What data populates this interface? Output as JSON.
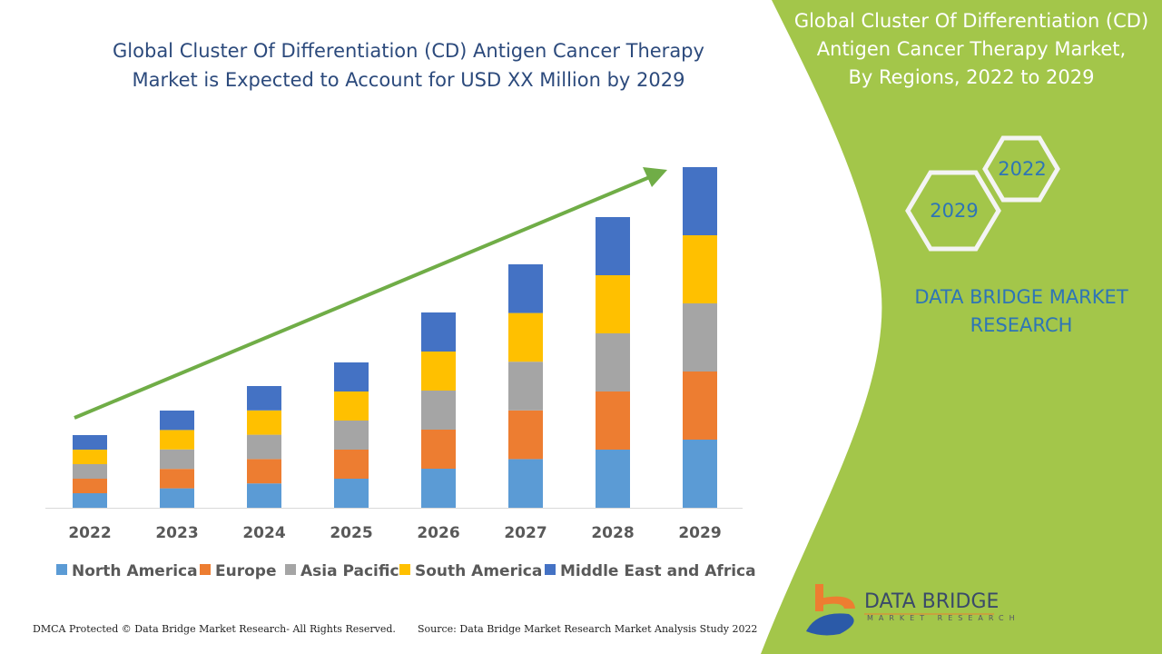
{
  "title_line1": "Global Cluster Of Differentiation (CD) Antigen Cancer Therapy",
  "title_line2": "Market is Expected to Account for USD XX Million by 2029",
  "side_panel": {
    "title_line1": "Global Cluster Of Differentiation (CD)",
    "title_line2": "Antigen Cancer Therapy Market,",
    "title_line3": "By Regions, 2022 to 2029",
    "hex_1": "2022",
    "hex_2": "2029",
    "brand_line1": "DATA BRIDGE MARKET",
    "brand_line2": "RESEARCH",
    "logo_text": "DATA BRIDGE",
    "logo_sub": "MARKET RESEARCH",
    "panel_color": "#a3c64a"
  },
  "footer": {
    "left": "DMCA Protected © Data Bridge Market Research- All Rights Reserved.",
    "right": "Source: Data Bridge Market Research Market Analysis Study 2022"
  },
  "chart_data": {
    "type": "bar",
    "stacked": true,
    "title": "",
    "xlabel": "",
    "ylabel": "",
    "grid": false,
    "legend_position": "bottom",
    "categories": [
      "2022",
      "2023",
      "2024",
      "2025",
      "2026",
      "2027",
      "2028",
      "2029"
    ],
    "series": [
      {
        "name": "North America",
        "color": "#5b9bd5",
        "values": [
          16,
          21.4,
          26.8,
          32,
          43,
          53.6,
          64,
          75
        ]
      },
      {
        "name": "Europe",
        "color": "#ed7d31",
        "values": [
          16,
          21.4,
          26.8,
          32,
          43,
          53.6,
          64,
          75
        ]
      },
      {
        "name": "Asia Pacific",
        "color": "#a5a5a5",
        "values": [
          16,
          21.4,
          26.8,
          32,
          43,
          53.6,
          64,
          75
        ]
      },
      {
        "name": "South America",
        "color": "#ffc000",
        "values": [
          16,
          21.4,
          26.8,
          32,
          43,
          53.6,
          64,
          75
        ]
      },
      {
        "name": "Middle East and Africa",
        "color": "#4472c4",
        "values": [
          16,
          21.4,
          26.8,
          32,
          43,
          53.6,
          64,
          75
        ]
      }
    ],
    "trend_arrow_color": "#70ad47"
  }
}
